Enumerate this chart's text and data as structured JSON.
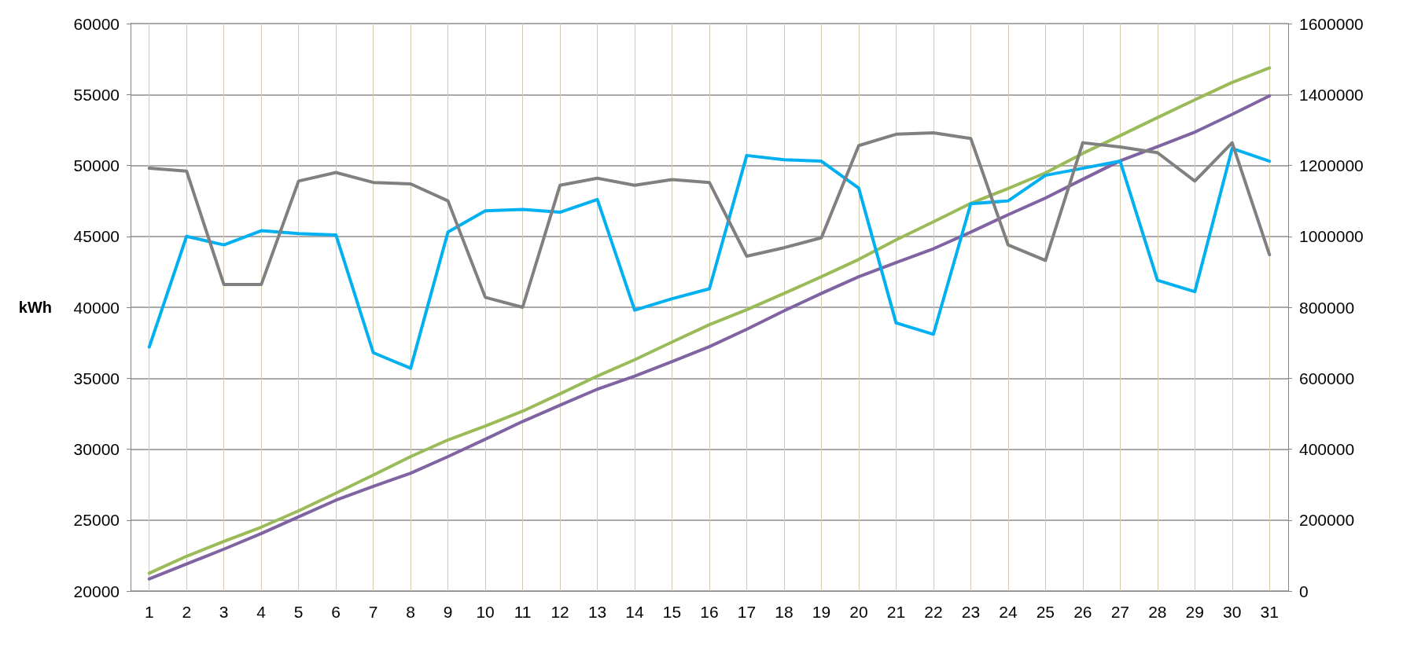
{
  "chart_data": {
    "type": "line",
    "ylabel": "kWh",
    "x": [
      1,
      2,
      3,
      4,
      5,
      6,
      7,
      8,
      9,
      10,
      11,
      12,
      13,
      14,
      15,
      16,
      17,
      18,
      19,
      20,
      21,
      22,
      23,
      24,
      25,
      26,
      27,
      28,
      29,
      30,
      31
    ],
    "xlim": [
      0.5,
      31.5
    ],
    "xticks": [
      1,
      2,
      3,
      4,
      5,
      6,
      7,
      8,
      9,
      10,
      11,
      12,
      13,
      14,
      15,
      16,
      17,
      18,
      19,
      20,
      21,
      22,
      23,
      24,
      25,
      26,
      27,
      28,
      29,
      30,
      31
    ],
    "ylim": [
      20000,
      60000
    ],
    "yticks": [
      20000,
      25000,
      30000,
      35000,
      40000,
      45000,
      50000,
      55000,
      60000
    ],
    "y2lim": [
      0,
      1600000
    ],
    "y2ticks": [
      0,
      200000,
      400000,
      600000,
      800000,
      1000000,
      1200000,
      1400000,
      1600000
    ],
    "grid": true,
    "marker": "none",
    "line_style": "solid",
    "series": [
      {
        "color": "#808080",
        "values": [
          49800,
          49600,
          41600,
          41600,
          48900,
          49500,
          48800,
          48700,
          47500,
          40700,
          40000,
          48600,
          49100,
          48600,
          49000,
          48800,
          43600,
          44200,
          44900,
          51400,
          52200,
          52300,
          51900,
          44400,
          43300,
          51600,
          51300,
          50900,
          48900,
          51600,
          43700
        ]
      },
      {
        "color": "#00b0f0",
        "values": [
          37200,
          45000,
          44400,
          45400,
          45200,
          45100,
          36800,
          35700,
          45300,
          46800,
          46900,
          46700,
          47600,
          39800,
          40600,
          41300,
          50700,
          50400,
          50300,
          48400,
          38900,
          38100,
          47300,
          47500,
          49300,
          49800,
          50300,
          41900,
          41100,
          51200,
          50300
        ]
      },
      {
        "color": "#9bbb59",
        "axis": "y2",
        "values": [
          50000,
          98000,
          140000,
          180000,
          226000,
          276000,
          327000,
          379000,
          426000,
          465000,
          507000,
          556000,
          606000,
          652000,
          702000,
          751000,
          793000,
          839000,
          886000,
          935000,
          990000,
          1041000,
          1093000,
          1135000,
          1179000,
          1234000,
          1284000,
          1335000,
          1385000,
          1434000,
          1475000
        ]
      },
      {
        "color": "#8064a2",
        "axis": "y2",
        "values": [
          34000,
          76000,
          118000,
          162000,
          209000,
          256000,
          295000,
          332000,
          379000,
          428000,
          478000,
          524000,
          569000,
          606000,
          647000,
          689000,
          738000,
          790000,
          839000,
          886000,
          926000,
          965000,
          1012000,
          1061000,
          1108000,
          1161000,
          1213000,
          1253000,
          1294000,
          1344000,
          1396000
        ]
      }
    ]
  }
}
